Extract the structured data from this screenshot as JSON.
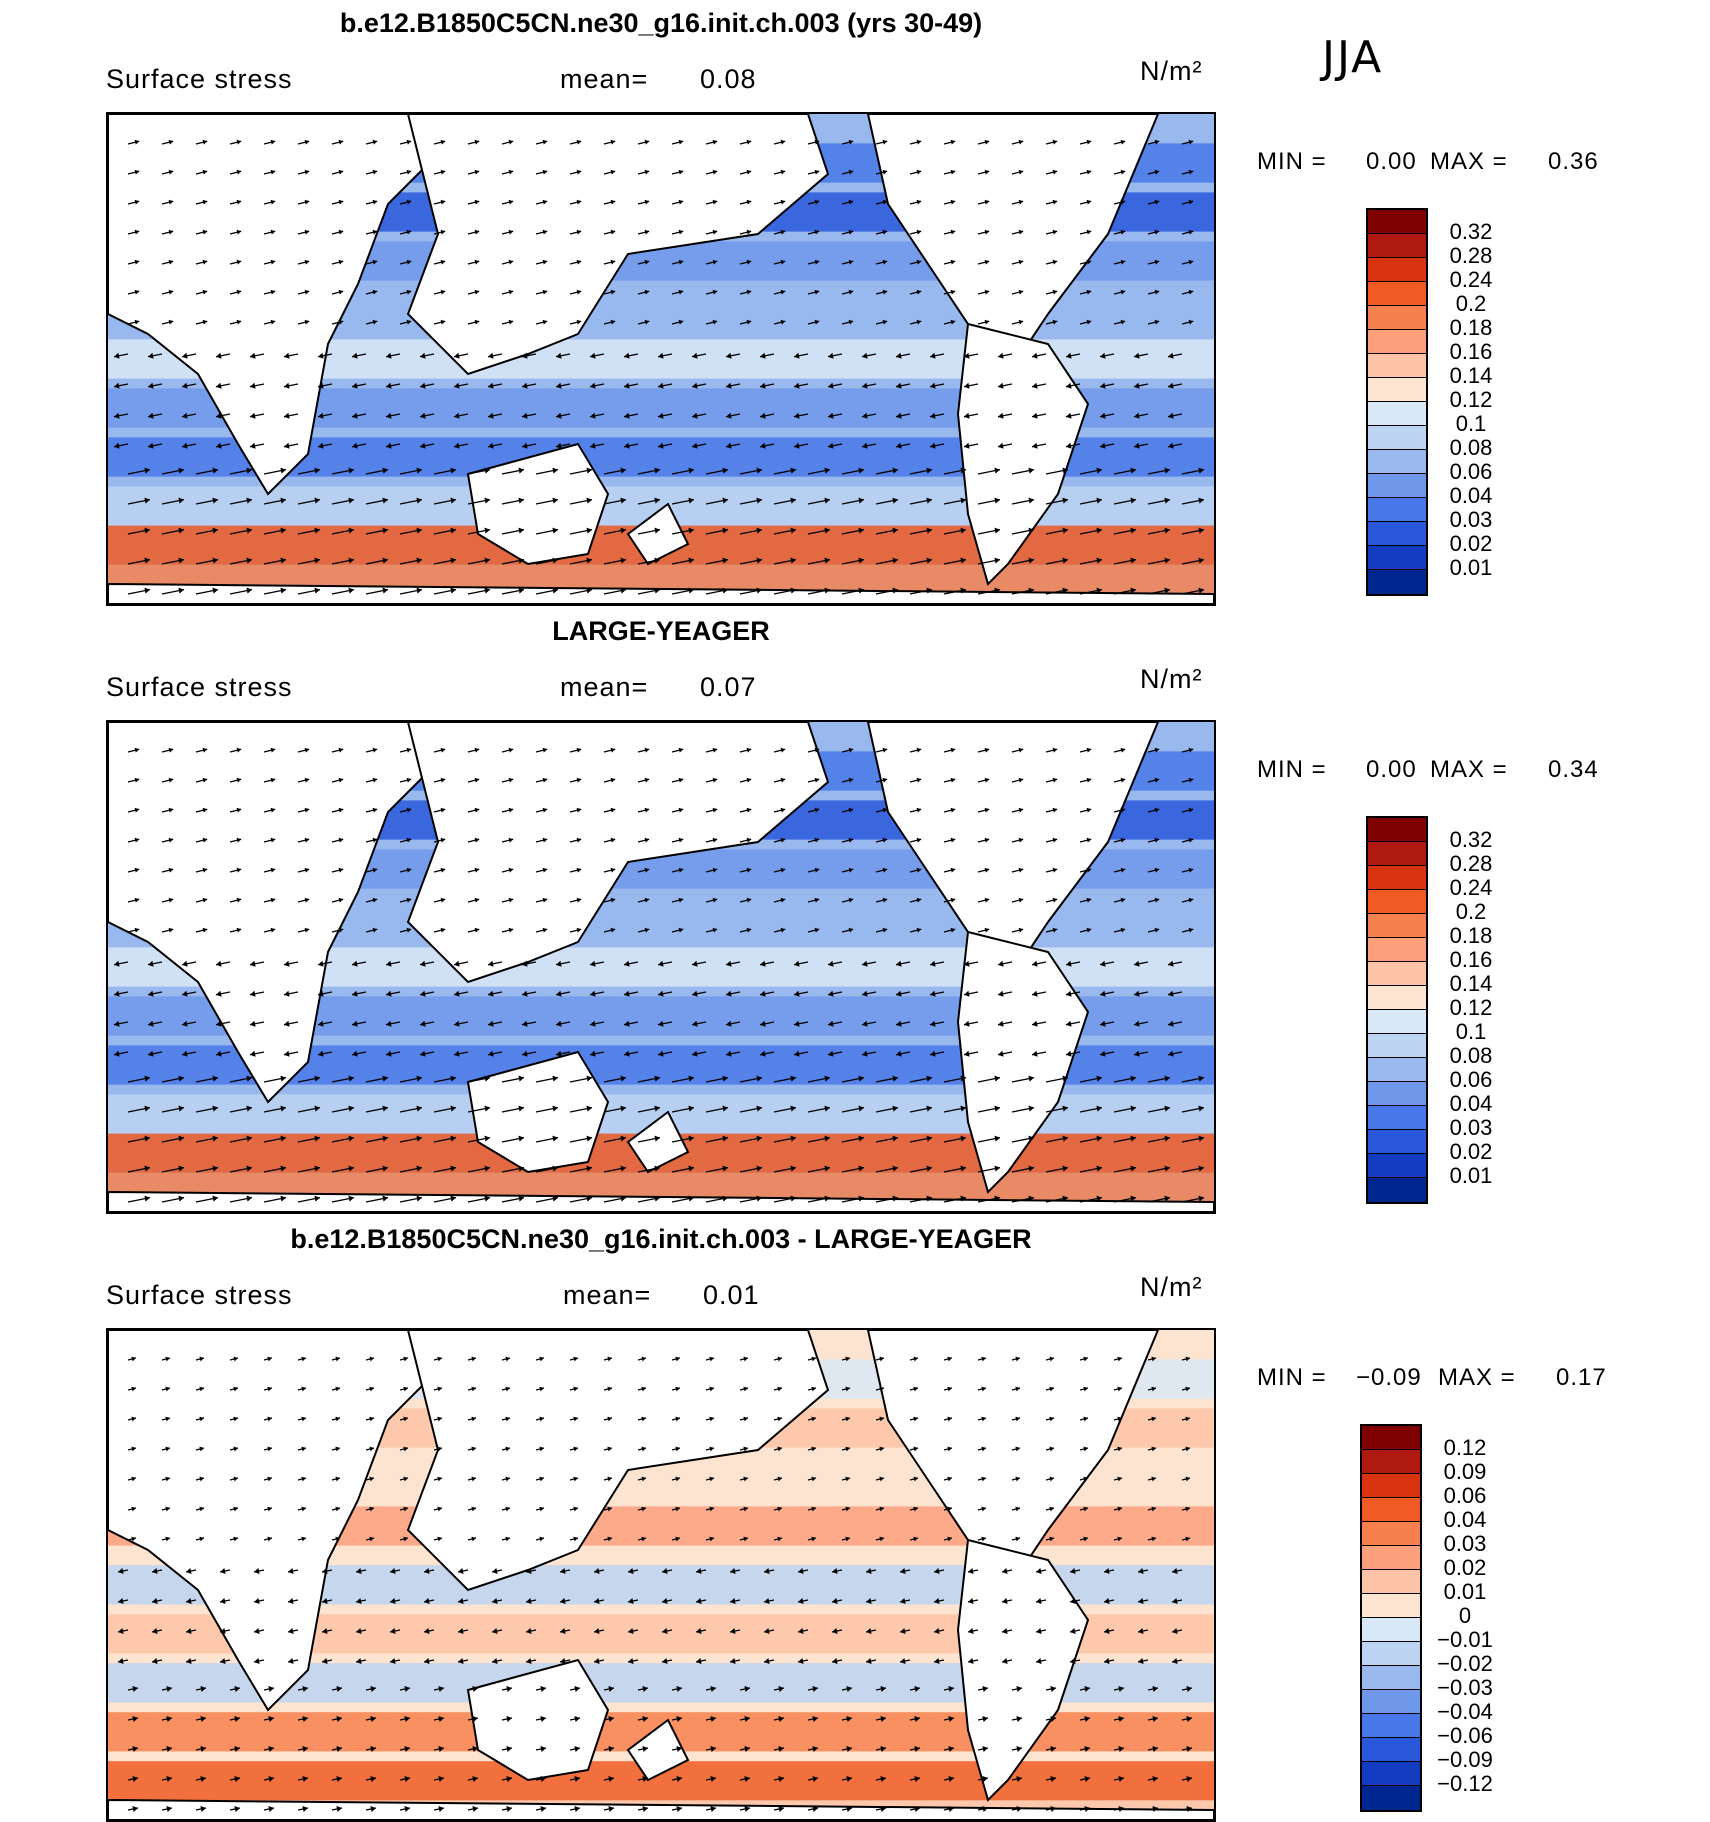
{
  "season": "JJA",
  "unit_label": "N/m²",
  "variable": "Surface stress",
  "mean_prefix": "mean=",
  "min_prefix": "MIN =",
  "max_prefix": "MAX =",
  "panels": [
    {
      "title": "b.e12.B1850C5CN.ne30_g16.init.ch.003 (yrs 30-49)",
      "mean": "0.08",
      "min": "0.00",
      "max": "0.36",
      "levels": [
        "0.32",
        "0.28",
        "0.24",
        "0.2",
        "0.18",
        "0.16",
        "0.14",
        "0.12",
        "0.1",
        "0.08",
        "0.06",
        "0.04",
        "0.03",
        "0.02",
        "0.01"
      ],
      "colors": [
        "#7f0000",
        "#b0190f",
        "#d8340f",
        "#f05a24",
        "#f7814e",
        "#fca07c",
        "#fdc3a6",
        "#fde4d1",
        "#d9e8f7",
        "#bcd3f2",
        "#98b8ee",
        "#6f98eb",
        "#4878e8",
        "#2a58da",
        "#133cc0",
        "#00268f"
      ]
    },
    {
      "title": "LARGE-YEAGER",
      "mean": "0.07",
      "min": "0.00",
      "max": "0.34",
      "levels": [
        "0.32",
        "0.28",
        "0.24",
        "0.2",
        "0.18",
        "0.16",
        "0.14",
        "0.12",
        "0.1",
        "0.08",
        "0.06",
        "0.04",
        "0.03",
        "0.02",
        "0.01"
      ],
      "colors": [
        "#7f0000",
        "#b0190f",
        "#d8340f",
        "#f05a24",
        "#f7814e",
        "#fca07c",
        "#fdc3a6",
        "#fde4d1",
        "#d9e8f7",
        "#bcd3f2",
        "#98b8ee",
        "#6f98eb",
        "#4878e8",
        "#2a58da",
        "#133cc0",
        "#00268f"
      ]
    },
    {
      "title": "b.e12.B1850C5CN.ne30_g16.init.ch.003 - LARGE-YEAGER",
      "mean": "0.01",
      "min": "−0.09",
      "max": "0.17",
      "levels": [
        "0.12",
        "0.09",
        "0.06",
        "0.04",
        "0.03",
        "0.02",
        "0.01",
        "0",
        "−0.01",
        "−0.02",
        "−0.03",
        "−0.04",
        "−0.06",
        "−0.09",
        "−0.12"
      ],
      "colors": [
        "#7f0000",
        "#b0190f",
        "#d8340f",
        "#f05a24",
        "#f7814e",
        "#fca07c",
        "#fdc3a6",
        "#fde4d1",
        "#d9e8f7",
        "#bcd3f2",
        "#98b8ee",
        "#6f98eb",
        "#4878e8",
        "#2a58da",
        "#133cc0",
        "#00268f"
      ]
    }
  ],
  "chart_data": [
    {
      "type": "heatmap",
      "title": "b.e12.B1850C5CN.ne30_g16.init.ch.003 (yrs 30-49)",
      "subtitle": "Surface stress",
      "units": "N/m²",
      "season": "JJA",
      "mean": 0.08,
      "min": 0.0,
      "max": 0.36,
      "contour_levels": [
        0.01,
        0.02,
        0.03,
        0.04,
        0.06,
        0.08,
        0.1,
        0.12,
        0.14,
        0.16,
        0.18,
        0.2,
        0.24,
        0.28,
        0.32
      ]
    },
    {
      "type": "heatmap",
      "title": "LARGE-YEAGER",
      "subtitle": "Surface stress",
      "units": "N/m²",
      "season": "JJA",
      "mean": 0.07,
      "min": 0.0,
      "max": 0.34,
      "contour_levels": [
        0.01,
        0.02,
        0.03,
        0.04,
        0.06,
        0.08,
        0.1,
        0.12,
        0.14,
        0.16,
        0.18,
        0.2,
        0.24,
        0.28,
        0.32
      ]
    },
    {
      "type": "heatmap",
      "title": "b.e12.B1850C5CN.ne30_g16.init.ch.003 - LARGE-YEAGER",
      "subtitle": "Surface stress",
      "units": "N/m²",
      "season": "JJA",
      "mean": 0.01,
      "min": -0.09,
      "max": 0.17,
      "contour_levels": [
        -0.12,
        -0.09,
        -0.06,
        -0.04,
        -0.03,
        -0.02,
        -0.01,
        0,
        0.01,
        0.02,
        0.03,
        0.04,
        0.06,
        0.09,
        0.12
      ]
    }
  ]
}
